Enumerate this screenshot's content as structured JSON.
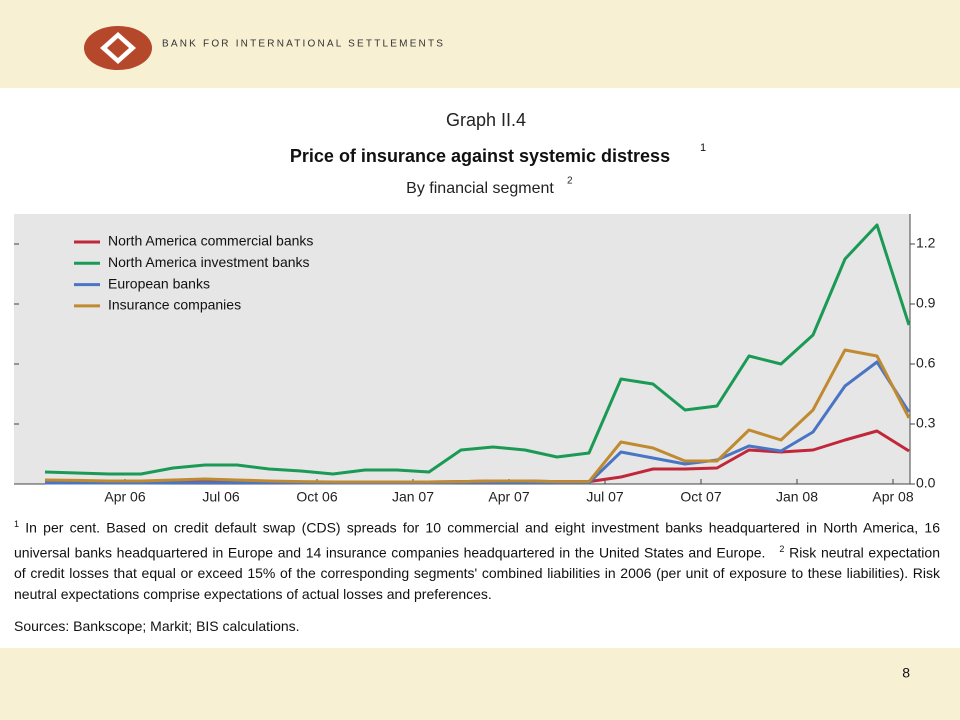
{
  "header": {
    "org": "BANK FOR INTERNATIONAL SETTLEMENTS"
  },
  "chart_data": {
    "type": "line",
    "graph_label": "Graph II.4",
    "title": "Price of insurance against systemic distress",
    "title_note": "1",
    "subtitle": "By financial segment",
    "subtitle_note": "2",
    "categories": [
      null,
      null,
      null,
      "Apr 06",
      null,
      null,
      "Jul 06",
      null,
      null,
      "Oct 06",
      null,
      null,
      "Jan 07",
      null,
      null,
      "Apr 07",
      null,
      null,
      "Jul 07",
      null,
      null,
      "Oct 07",
      null,
      null,
      "Jan 08",
      null,
      null,
      "Apr 08"
    ],
    "series": [
      {
        "name": "North America commercial banks",
        "color": "#c0283a",
        "values": [
          0.015,
          0.012,
          0.01,
          0.01,
          0.012,
          0.015,
          0.015,
          0.012,
          0.01,
          0.01,
          0.01,
          0.01,
          0.01,
          0.012,
          0.015,
          0.015,
          0.012,
          0.012,
          0.035,
          0.075,
          0.075,
          0.08,
          0.17,
          0.16,
          0.17,
          0.22,
          0.265,
          0.165
        ]
      },
      {
        "name": "North America investment banks",
        "color": "#1a9a55",
        "values": [
          0.06,
          0.055,
          0.05,
          0.05,
          0.08,
          0.095,
          0.095,
          0.075,
          0.065,
          0.05,
          0.07,
          0.07,
          0.06,
          0.17,
          0.185,
          0.17,
          0.135,
          0.155,
          0.525,
          0.5,
          0.37,
          0.39,
          0.64,
          0.6,
          0.745,
          1.125,
          1.295,
          0.795
        ]
      },
      {
        "name": "European banks",
        "color": "#4a74c4",
        "values": [
          0.005,
          0.005,
          0.005,
          0.005,
          0.006,
          0.007,
          0.007,
          0.006,
          0.005,
          0.005,
          0.005,
          0.005,
          0.005,
          0.006,
          0.007,
          0.007,
          0.006,
          0.006,
          0.16,
          0.13,
          0.1,
          0.12,
          0.19,
          0.165,
          0.26,
          0.49,
          0.61,
          0.36
        ]
      },
      {
        "name": "Insurance companies",
        "color": "#c08a30",
        "values": [
          0.02,
          0.018,
          0.015,
          0.015,
          0.02,
          0.025,
          0.02,
          0.015,
          0.012,
          0.01,
          0.01,
          0.01,
          0.01,
          0.012,
          0.015,
          0.015,
          0.012,
          0.012,
          0.21,
          0.18,
          0.115,
          0.115,
          0.27,
          0.22,
          0.37,
          0.67,
          0.64,
          0.33
        ]
      }
    ],
    "ylim": [
      0,
      1.35
    ],
    "yticks": [
      {
        "value": 0,
        "label": "0.0"
      },
      0.3,
      0.6,
      0.9,
      1.2
    ],
    "grid": false,
    "legend": "upper left"
  },
  "notes": [
    {
      "marker": "1",
      "text": "In per cent. Based on credit default swap (CDS) spreads for 10 commercial and eight investment banks headquartered in North America, 16 universal banks headquartered in Europe and 14 insurance companies headquartered in the United States and Europe."
    },
    {
      "marker": "2",
      "text": "Risk neutral expectation of credit losses that equal or exceed 15% of the corresponding segments' combined liabilities in 2006 (per unit of exposure to these liabilities). Risk neutral expectations comprise expectations of actual losses and preferences."
    }
  ],
  "sources": "Sources: Bankscope; Markit; BIS calculations.",
  "page_number": "8"
}
